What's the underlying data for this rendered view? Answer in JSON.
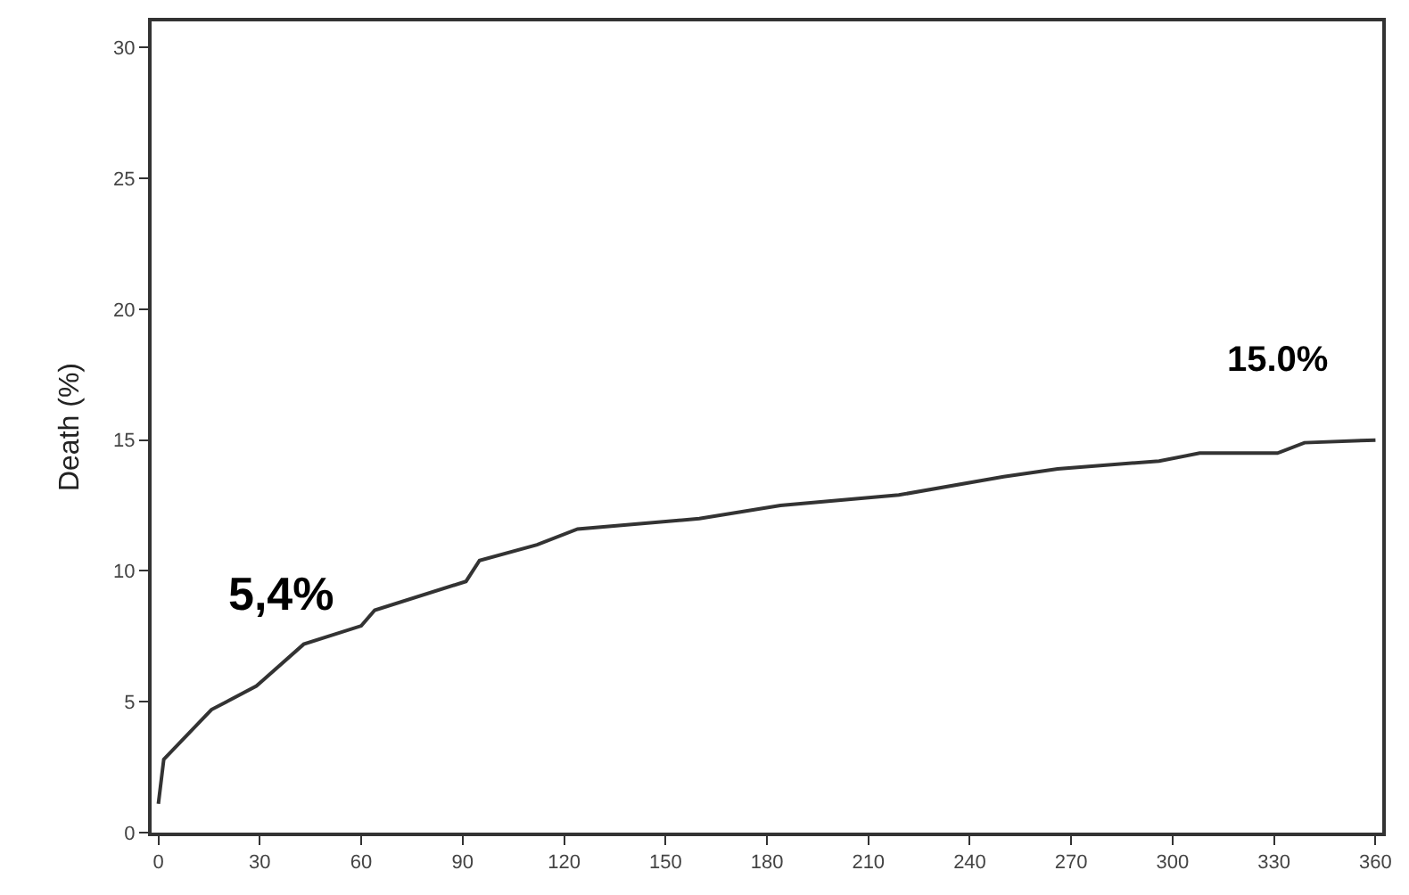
{
  "chart_data": {
    "type": "line",
    "ylabel": "Death (%)",
    "x": [
      0,
      1.6,
      15.7,
      29,
      43,
      60,
      64,
      91,
      95,
      112,
      124,
      160,
      184,
      219,
      250,
      266,
      296,
      308,
      331,
      339,
      360
    ],
    "series": [
      {
        "color": "#333333",
        "values": [
          1.1,
          2.8,
          4.7,
          5.6,
          7.2,
          7.9,
          8.5,
          9.6,
          10.4,
          11.0,
          11.6,
          12.0,
          12.5,
          12.9,
          13.6,
          13.9,
          14.2,
          14.5,
          14.5,
          14.9,
          15.0
        ]
      }
    ],
    "annotations": [
      {
        "text": "5,4%",
        "x": 30,
        "y": 5.4
      },
      {
        "text": "15.0%",
        "x": 360,
        "y": 15.0
      }
    ],
    "xlim": [
      -2,
      362
    ],
    "ylim": [
      0,
      31
    ],
    "xticks": [
      0,
      30,
      60,
      90,
      120,
      150,
      180,
      210,
      240,
      270,
      300,
      330,
      360
    ],
    "yticks": [
      0,
      5,
      10,
      15,
      20,
      25,
      30
    ],
    "marker": "none",
    "line_style": "solid"
  }
}
